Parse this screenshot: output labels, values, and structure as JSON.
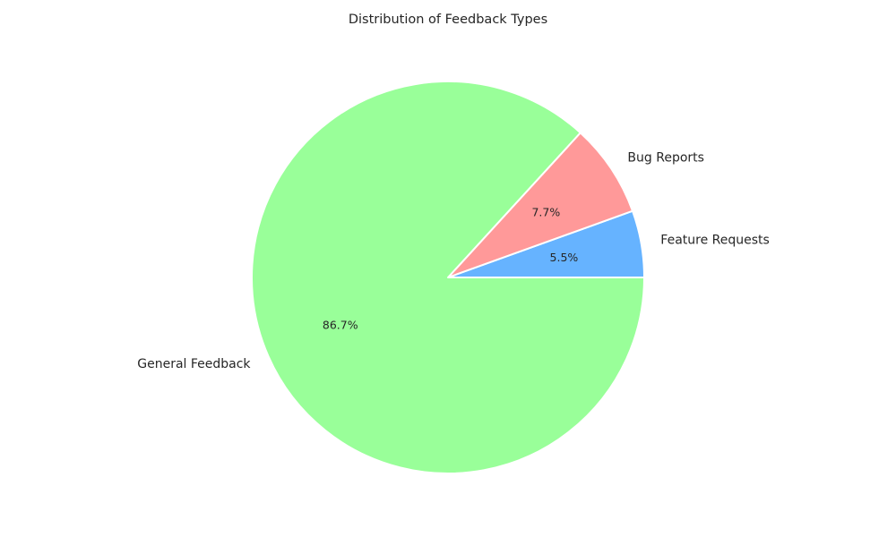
{
  "chart_data": {
    "type": "pie",
    "title": "Distribution of Feedback Types",
    "slices": [
      {
        "label": "Feature Requests",
        "percent": 5.5,
        "percent_label": "5.5%",
        "color": "#66b3ff"
      },
      {
        "label": "Bug Reports",
        "percent": 7.7,
        "percent_label": "7.7%",
        "color": "#ff9999"
      },
      {
        "label": "General Feedback",
        "percent": 86.7,
        "percent_label": "86.7%",
        "color": "#99ff99"
      }
    ],
    "start_angle_deg": 0,
    "direction": "counterclockwise",
    "legend": "none"
  }
}
